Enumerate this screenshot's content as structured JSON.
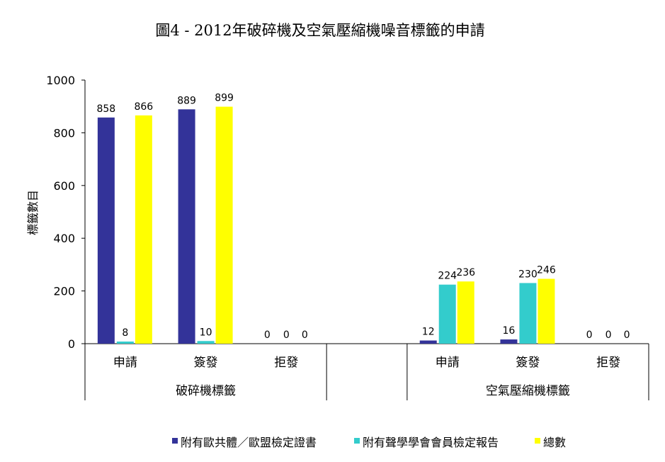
{
  "chart_data": {
    "type": "bar",
    "title": "圖4 - 2012年破碎機及空氣壓縮機噪音標籤的申請",
    "ylabel": "標籤數目",
    "xlabel": "",
    "ylim": [
      0,
      1000
    ],
    "yticks": [
      0,
      200,
      400,
      600,
      800,
      1000
    ],
    "grid": false,
    "legend_position": "bottom",
    "groups": [
      {
        "label": "破碎機標籤",
        "categories": [
          "申請",
          "簽發",
          "拒發"
        ]
      },
      {
        "label": "空氣壓縮機標籤",
        "categories": [
          "申請",
          "簽發",
          "拒發"
        ]
      }
    ],
    "series": [
      {
        "name": "附有歐共體／歐盟檢定證書",
        "color": "#333399",
        "values": [
          858,
          889,
          0,
          12,
          16,
          0
        ]
      },
      {
        "name": "附有聲學學會會員檢定報告",
        "color": "#33CCCC",
        "values": [
          8,
          10,
          0,
          224,
          230,
          0
        ]
      },
      {
        "name": "總數",
        "color": "#FFFF00",
        "values": [
          866,
          899,
          0,
          236,
          246,
          0
        ]
      }
    ]
  }
}
